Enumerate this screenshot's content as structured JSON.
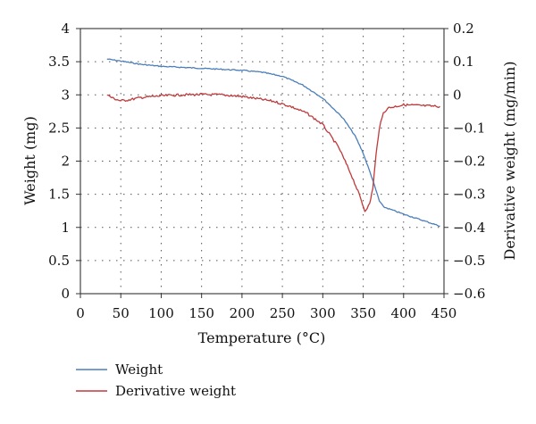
{
  "chart_data": {
    "type": "line",
    "xlabel": "Temperature (°C)",
    "ylabel_left": "Weight (mg)",
    "ylabel_right": "Derivative weight (mg/min)",
    "xlim": [
      0,
      450
    ],
    "ylim_left": [
      0,
      4
    ],
    "ylim_right": [
      -0.6,
      0.2
    ],
    "x_ticks": [
      "0",
      "50",
      "100",
      "150",
      "200",
      "250",
      "300",
      "350",
      "400",
      "450"
    ],
    "y_left_ticks": [
      "0",
      "0.5",
      "1",
      "1.5",
      "2",
      "2.5",
      "3",
      "3.5",
      "4"
    ],
    "y_right_ticks": [
      "−0.6",
      "−0.5",
      "−0.4",
      "−0.3",
      "−0.2",
      "−0.1",
      "0",
      "0.1",
      "0.2"
    ],
    "grid": true,
    "legend_position": "bottom-left",
    "series": [
      {
        "name": "Weight",
        "axis": "left",
        "color": "#4a7ebb",
        "x": [
          33,
          50,
          75,
          100,
          150,
          200,
          225,
          250,
          275,
          300,
          325,
          340,
          350,
          360,
          370,
          375,
          400,
          425,
          445
        ],
        "y": [
          3.54,
          3.51,
          3.46,
          3.43,
          3.4,
          3.37,
          3.34,
          3.28,
          3.15,
          2.95,
          2.65,
          2.38,
          2.12,
          1.78,
          1.4,
          1.31,
          1.2,
          1.1,
          1.02
        ]
      },
      {
        "name": "Derivative weight",
        "axis": "right",
        "color": "#c0393b",
        "x": [
          33,
          40,
          50,
          60,
          75,
          100,
          125,
          150,
          175,
          200,
          220,
          240,
          260,
          280,
          300,
          320,
          335,
          345,
          352,
          358,
          362,
          366,
          370,
          375,
          380,
          390,
          400,
          425,
          445
        ],
        "y": [
          0.0,
          -0.01,
          -0.018,
          -0.015,
          -0.008,
          -0.003,
          0.0,
          0.001,
          0.0,
          -0.005,
          -0.012,
          -0.02,
          -0.035,
          -0.055,
          -0.09,
          -0.16,
          -0.24,
          -0.3,
          -0.35,
          -0.33,
          -0.28,
          -0.18,
          -0.1,
          -0.055,
          -0.04,
          -0.035,
          -0.03,
          -0.033,
          -0.035
        ]
      }
    ]
  }
}
